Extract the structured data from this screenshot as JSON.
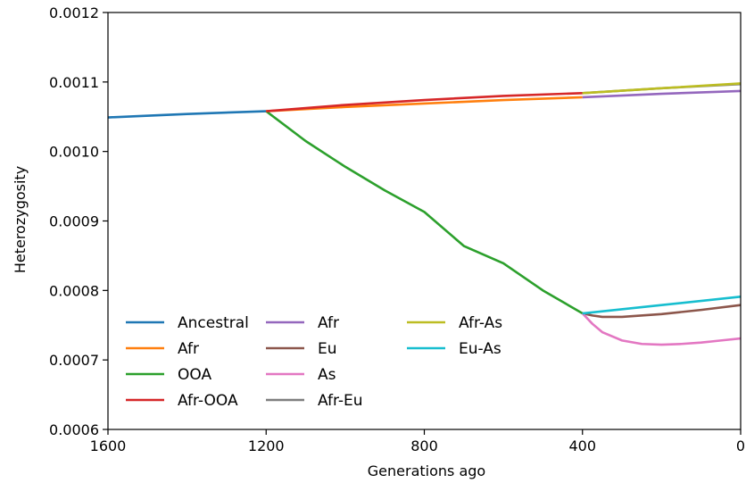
{
  "chart_data": {
    "type": "line",
    "xlabel": "Generations ago",
    "ylabel": "Heterozygosity",
    "xlim": [
      1600,
      0
    ],
    "ylim": [
      0.0006,
      0.0012
    ],
    "x_ticks": [
      "1600",
      "1200",
      "800",
      "400",
      "0"
    ],
    "y_ticks": [
      "0.0006",
      "0.0007",
      "0.0008",
      "0.0009",
      "0.0010",
      "0.0011",
      "0.0012"
    ],
    "grid": false,
    "legend_position": "lower-left",
    "series": [
      {
        "name": "Ancestral",
        "color": "#1f77b4",
        "points": [
          [
            1600,
            0.001049
          ],
          [
            1400,
            0.001054
          ],
          [
            1200,
            0.001058
          ]
        ]
      },
      {
        "name": "Afr",
        "color": "#ff7f0e",
        "points": [
          [
            1200,
            0.001058
          ],
          [
            1000,
            0.001064
          ],
          [
            800,
            0.001069
          ],
          [
            600,
            0.001074
          ],
          [
            400,
            0.001078
          ]
        ]
      },
      {
        "name": "OOA",
        "color": "#2ca02c",
        "points": [
          [
            1200,
            0.001058
          ],
          [
            1100,
            0.001015
          ],
          [
            1000,
            0.000978
          ],
          [
            900,
            0.000944
          ],
          [
            800,
            0.000913
          ],
          [
            700,
            0.000864
          ],
          [
            600,
            0.000839
          ],
          [
            500,
            0.0008
          ],
          [
            400,
            0.000767
          ]
        ]
      },
      {
        "name": "Afr-OOA",
        "color": "#d62728",
        "points": [
          [
            1200,
            0.001058
          ],
          [
            1000,
            0.001067
          ],
          [
            800,
            0.001074
          ],
          [
            600,
            0.00108
          ],
          [
            400,
            0.001084
          ]
        ]
      },
      {
        "name": "Afr",
        "color": "#9467bd",
        "points": [
          [
            400,
            0.001078
          ],
          [
            200,
            0.001083
          ],
          [
            0,
            0.001087
          ]
        ]
      },
      {
        "name": "Eu",
        "color": "#8c564b",
        "points": [
          [
            400,
            0.000767
          ],
          [
            375,
            0.000764
          ],
          [
            350,
            0.000762
          ],
          [
            300,
            0.000762
          ],
          [
            200,
            0.000766
          ],
          [
            100,
            0.000772
          ],
          [
            0,
            0.000779
          ]
        ]
      },
      {
        "name": "As",
        "color": "#e377c2",
        "points": [
          [
            400,
            0.000767
          ],
          [
            375,
            0.000752
          ],
          [
            350,
            0.00074
          ],
          [
            300,
            0.000728
          ],
          [
            250,
            0.000723
          ],
          [
            200,
            0.000722
          ],
          [
            150,
            0.000723
          ],
          [
            100,
            0.000725
          ],
          [
            50,
            0.000728
          ],
          [
            0,
            0.000731
          ]
        ]
      },
      {
        "name": "Afr-Eu",
        "color": "#7f7f7f",
        "points": [
          [
            400,
            0.001084
          ],
          [
            200,
            0.001091
          ],
          [
            0,
            0.001097
          ]
        ]
      },
      {
        "name": "Afr-As",
        "color": "#bcbd22",
        "points": [
          [
            400,
            0.001084
          ],
          [
            200,
            0.001091
          ],
          [
            0,
            0.001098
          ]
        ]
      },
      {
        "name": "Eu-As",
        "color": "#17becf",
        "points": [
          [
            400,
            0.000767
          ],
          [
            200,
            0.000779
          ],
          [
            0,
            0.000791
          ]
        ]
      }
    ]
  }
}
